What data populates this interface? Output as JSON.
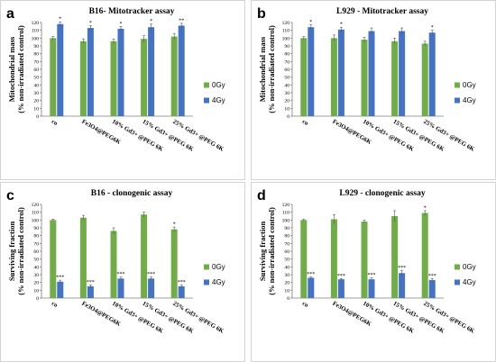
{
  "colors": {
    "c0Gy": "#70ad47",
    "c4Gy": "#4472c4"
  },
  "chart_data": [
    {
      "type": "bar",
      "letter": "a",
      "title": "B16- Mitotracker assay",
      "ylabel_line1": "Mitochondrial mass",
      "ylabel_line2": "(% non-irradiated control)",
      "ylim": [
        0,
        120
      ],
      "yticks": [
        0,
        10,
        20,
        30,
        40,
        50,
        60,
        70,
        80,
        90,
        100,
        110,
        120
      ],
      "grid": false,
      "legend_position": "right",
      "categories": [
        "co",
        "Fe3O4@PEG6K",
        "10% Gd3+ @PEG 6K",
        "15% Gd3+ @PEG 6K",
        "25% Gd3+ @PEG 6K"
      ],
      "series": [
        {
          "name": "0Gy",
          "values": [
            100,
            96,
            96,
            99,
            102
          ],
          "errors": [
            2,
            3,
            3,
            4,
            4
          ]
        },
        {
          "name": "4Gy",
          "values": [
            118,
            113,
            112,
            114,
            116
          ],
          "errors": [
            3,
            3,
            3,
            4,
            3
          ]
        }
      ],
      "annotations": [
        "*",
        "*",
        "*",
        "*",
        "**"
      ]
    },
    {
      "type": "bar",
      "letter": "b",
      "title": "L929 - Mitotracker assay",
      "ylabel_line1": "Mitochondrial mass",
      "ylabel_line2": "(% non-irradiated control)",
      "ylim": [
        0,
        120
      ],
      "yticks": [
        0,
        10,
        20,
        30,
        40,
        50,
        60,
        70,
        80,
        90,
        100,
        110,
        120
      ],
      "grid": false,
      "legend_position": "right",
      "categories": [
        "co",
        "Fe3O4@PEG6K",
        "10% Gd3+ @PEG 6K",
        "15% Gd3+ @PEG 6K",
        "25% Gd3+ @PEG 6K"
      ],
      "series": [
        {
          "name": "0Gy",
          "values": [
            100,
            100,
            98,
            96,
            93
          ],
          "errors": [
            2,
            4,
            3,
            4,
            3
          ]
        },
        {
          "name": "4Gy",
          "values": [
            114,
            111,
            109,
            109,
            107
          ],
          "errors": [
            3,
            3,
            4,
            4,
            3
          ]
        }
      ],
      "annotations": [
        "*",
        "*",
        "",
        "",
        "*"
      ]
    },
    {
      "type": "bar",
      "letter": "c",
      "title": "B16 - clonogenic assay",
      "ylabel_line1": "Surviving fraction",
      "ylabel_line2": "(% non-irradiated control)",
      "ylim": [
        0,
        120
      ],
      "yticks": [
        0,
        10,
        20,
        30,
        40,
        50,
        60,
        70,
        80,
        90,
        100,
        110,
        120
      ],
      "grid": false,
      "legend_position": "right",
      "categories": [
        "co",
        "Fe3O4@PEG6K",
        "10% Gd3+ @PEG 6K",
        "15% Gd3+ @PEG 6K",
        "25% Gd3+ @PEG 6K"
      ],
      "series": [
        {
          "name": "0Gy",
          "values": [
            100,
            103,
            86,
            107,
            88
          ],
          "errors": [
            1,
            3,
            4,
            3,
            3
          ]
        },
        {
          "name": "4Gy",
          "values": [
            21,
            15,
            25,
            25,
            15
          ],
          "errors": [
            2,
            2,
            2,
            2,
            2
          ]
        }
      ],
      "annotations_0Gy": [
        "",
        "",
        "",
        "",
        "*"
      ],
      "annotations": [
        "***",
        "***",
        "***",
        "***",
        "***"
      ]
    },
    {
      "type": "bar",
      "letter": "d",
      "title": "L929 - clonogenic assay",
      "ylabel_line1": "Surviving fraction",
      "ylabel_line2": "(% non-irradiated control)",
      "ylim": [
        0,
        120
      ],
      "yticks": [
        0,
        10,
        20,
        30,
        40,
        50,
        60,
        70,
        80,
        90,
        100,
        110,
        120
      ],
      "grid": false,
      "legend_position": "right",
      "categories": [
        "co",
        "Fe3O4@PEG6K",
        "10% Gd3+ @PEG 6K",
        "15% Gd3+ @PEG 6K",
        "25% Gd3+ @PEG 6K"
      ],
      "series": [
        {
          "name": "0Gy",
          "values": [
            100,
            101,
            98,
            105,
            109
          ],
          "errors": [
            1,
            6,
            2,
            7,
            3
          ]
        },
        {
          "name": "4Gy",
          "values": [
            26,
            24,
            24,
            32,
            23
          ],
          "errors": [
            1,
            1,
            2,
            3,
            2
          ]
        }
      ],
      "annotations_0Gy": [
        "",
        "",
        "",
        "",
        "*"
      ],
      "annotations": [
        "***",
        "***",
        "***",
        "***",
        "***"
      ]
    }
  ]
}
